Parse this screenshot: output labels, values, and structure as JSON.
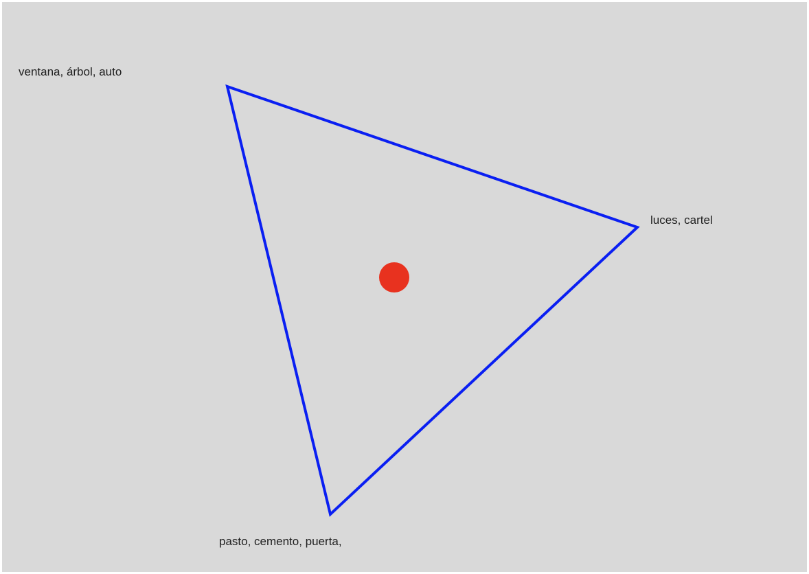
{
  "diagram": {
    "background_color": "#d9d9d9",
    "triangle_color": "#0a1ff2",
    "dot_color": "#e8321f",
    "labels": {
      "top_left": "ventana, árbol, auto",
      "right": "luces, cartel",
      "bottom": "pasto, cemento, puerta,"
    }
  }
}
